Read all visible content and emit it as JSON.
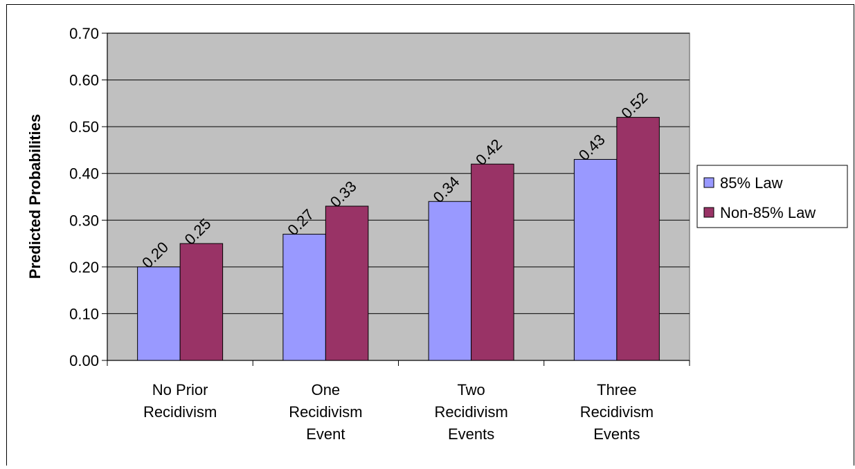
{
  "chart_data": {
    "type": "bar",
    "title": "",
    "xlabel": "",
    "ylabel": "Predicted Probabilities",
    "ylim": [
      0,
      0.7
    ],
    "yticks": [
      "0.00",
      "0.10",
      "0.20",
      "0.30",
      "0.40",
      "0.50",
      "0.60",
      "0.70"
    ],
    "categories": [
      [
        "No Prior",
        "Recidivism"
      ],
      [
        "One",
        "Recidivism",
        "Event"
      ],
      [
        "Two",
        "Recidivism",
        "Events"
      ],
      [
        "Three",
        "Recidivism",
        "Events"
      ]
    ],
    "series": [
      {
        "name": "85% Law",
        "color": "#9999ff",
        "values": [
          0.2,
          0.27,
          0.34,
          0.43
        ],
        "labels": [
          "0.20",
          "0.27",
          "0.34",
          "0.43"
        ]
      },
      {
        "name": "Non-85% Law",
        "color": "#993366",
        "values": [
          0.25,
          0.33,
          0.42,
          0.52
        ],
        "labels": [
          "0.25",
          "0.33",
          "0.42",
          "0.52"
        ]
      }
    ],
    "plot_background": "#c0c0c0",
    "grid": true,
    "legend": "right"
  }
}
